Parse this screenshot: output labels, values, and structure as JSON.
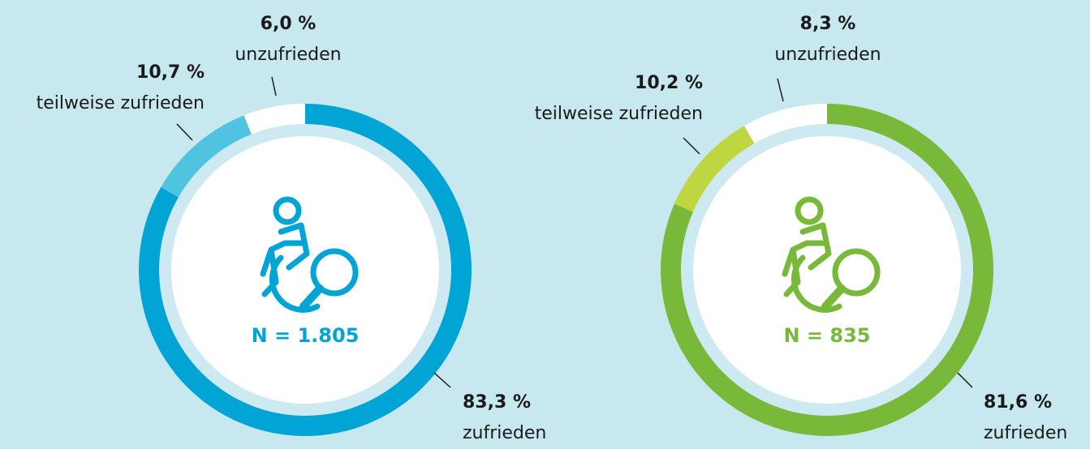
{
  "chart_data": [
    {
      "type": "donut",
      "categories": [
        "zufrieden",
        "teilweise zufrieden",
        "unzufrieden"
      ],
      "values": [
        83.3,
        10.7,
        6.0
      ],
      "value_labels": [
        "83,3 %",
        "10,7 %",
        "6,0 %"
      ],
      "colors": [
        "#00a5d6",
        "#4fc3e0",
        "#ffffff"
      ],
      "center_label": "N = 1.805"
    },
    {
      "type": "donut",
      "categories": [
        "zufrieden",
        "teilweise zufrieden",
        "unzufrieden"
      ],
      "values": [
        81.6,
        10.2,
        8.3
      ],
      "value_labels": [
        "81,6 %",
        "10,2 %",
        "8,3 %"
      ],
      "colors": [
        "#78b93a",
        "#bed740",
        "#ffffff"
      ],
      "center_label": "N = 835"
    }
  ]
}
